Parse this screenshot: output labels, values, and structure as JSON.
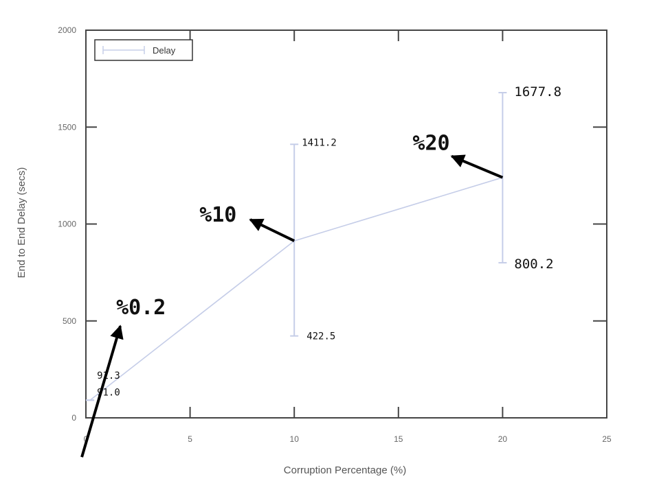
{
  "chart_data": {
    "type": "line",
    "xlabel": "Corruption Percentage (%)",
    "ylabel": "End to End Delay (secs)",
    "xlim": [
      0,
      25
    ],
    "ylim": [
      0,
      2000
    ],
    "xticks": [
      0,
      5,
      10,
      15,
      20,
      25
    ],
    "yticks": [
      0,
      500,
      1000,
      1500,
      2000
    ],
    "grid": false,
    "legend_position": "top-left",
    "series": [
      {
        "name": "Delay",
        "color": "#c5cde8",
        "points": [
          {
            "x": 0.2,
            "y": 91.2,
            "low": 91.0,
            "high": 91.3
          },
          {
            "x": 10,
            "y": 913,
            "low": 422.5,
            "high": 1411.2
          },
          {
            "x": 20,
            "y": 1240,
            "low": 800.2,
            "high": 1677.8
          }
        ]
      }
    ],
    "annotations": [
      {
        "text": "91.3",
        "x": 0.2,
        "y": 91.3,
        "style": "small"
      },
      {
        "text": "91.0",
        "x": 0.2,
        "y": 91.0,
        "style": "small"
      },
      {
        "text": "1411.2",
        "x": 10,
        "y": 1411.2,
        "style": "small"
      },
      {
        "text": "422.5",
        "x": 10,
        "y": 422.5,
        "style": "small"
      },
      {
        "text": "1677.8",
        "x": 20,
        "y": 1677.8,
        "style": "medium"
      },
      {
        "text": "800.2",
        "x": 20,
        "y": 800.2,
        "style": "medium"
      },
      {
        "text": "%0.2",
        "x": 0.2,
        "y": 91.2,
        "style": "large"
      },
      {
        "text": "%10",
        "x": 10,
        "y": 913,
        "style": "large"
      },
      {
        "text": "%20",
        "x": 20,
        "y": 1240,
        "style": "large"
      }
    ]
  }
}
